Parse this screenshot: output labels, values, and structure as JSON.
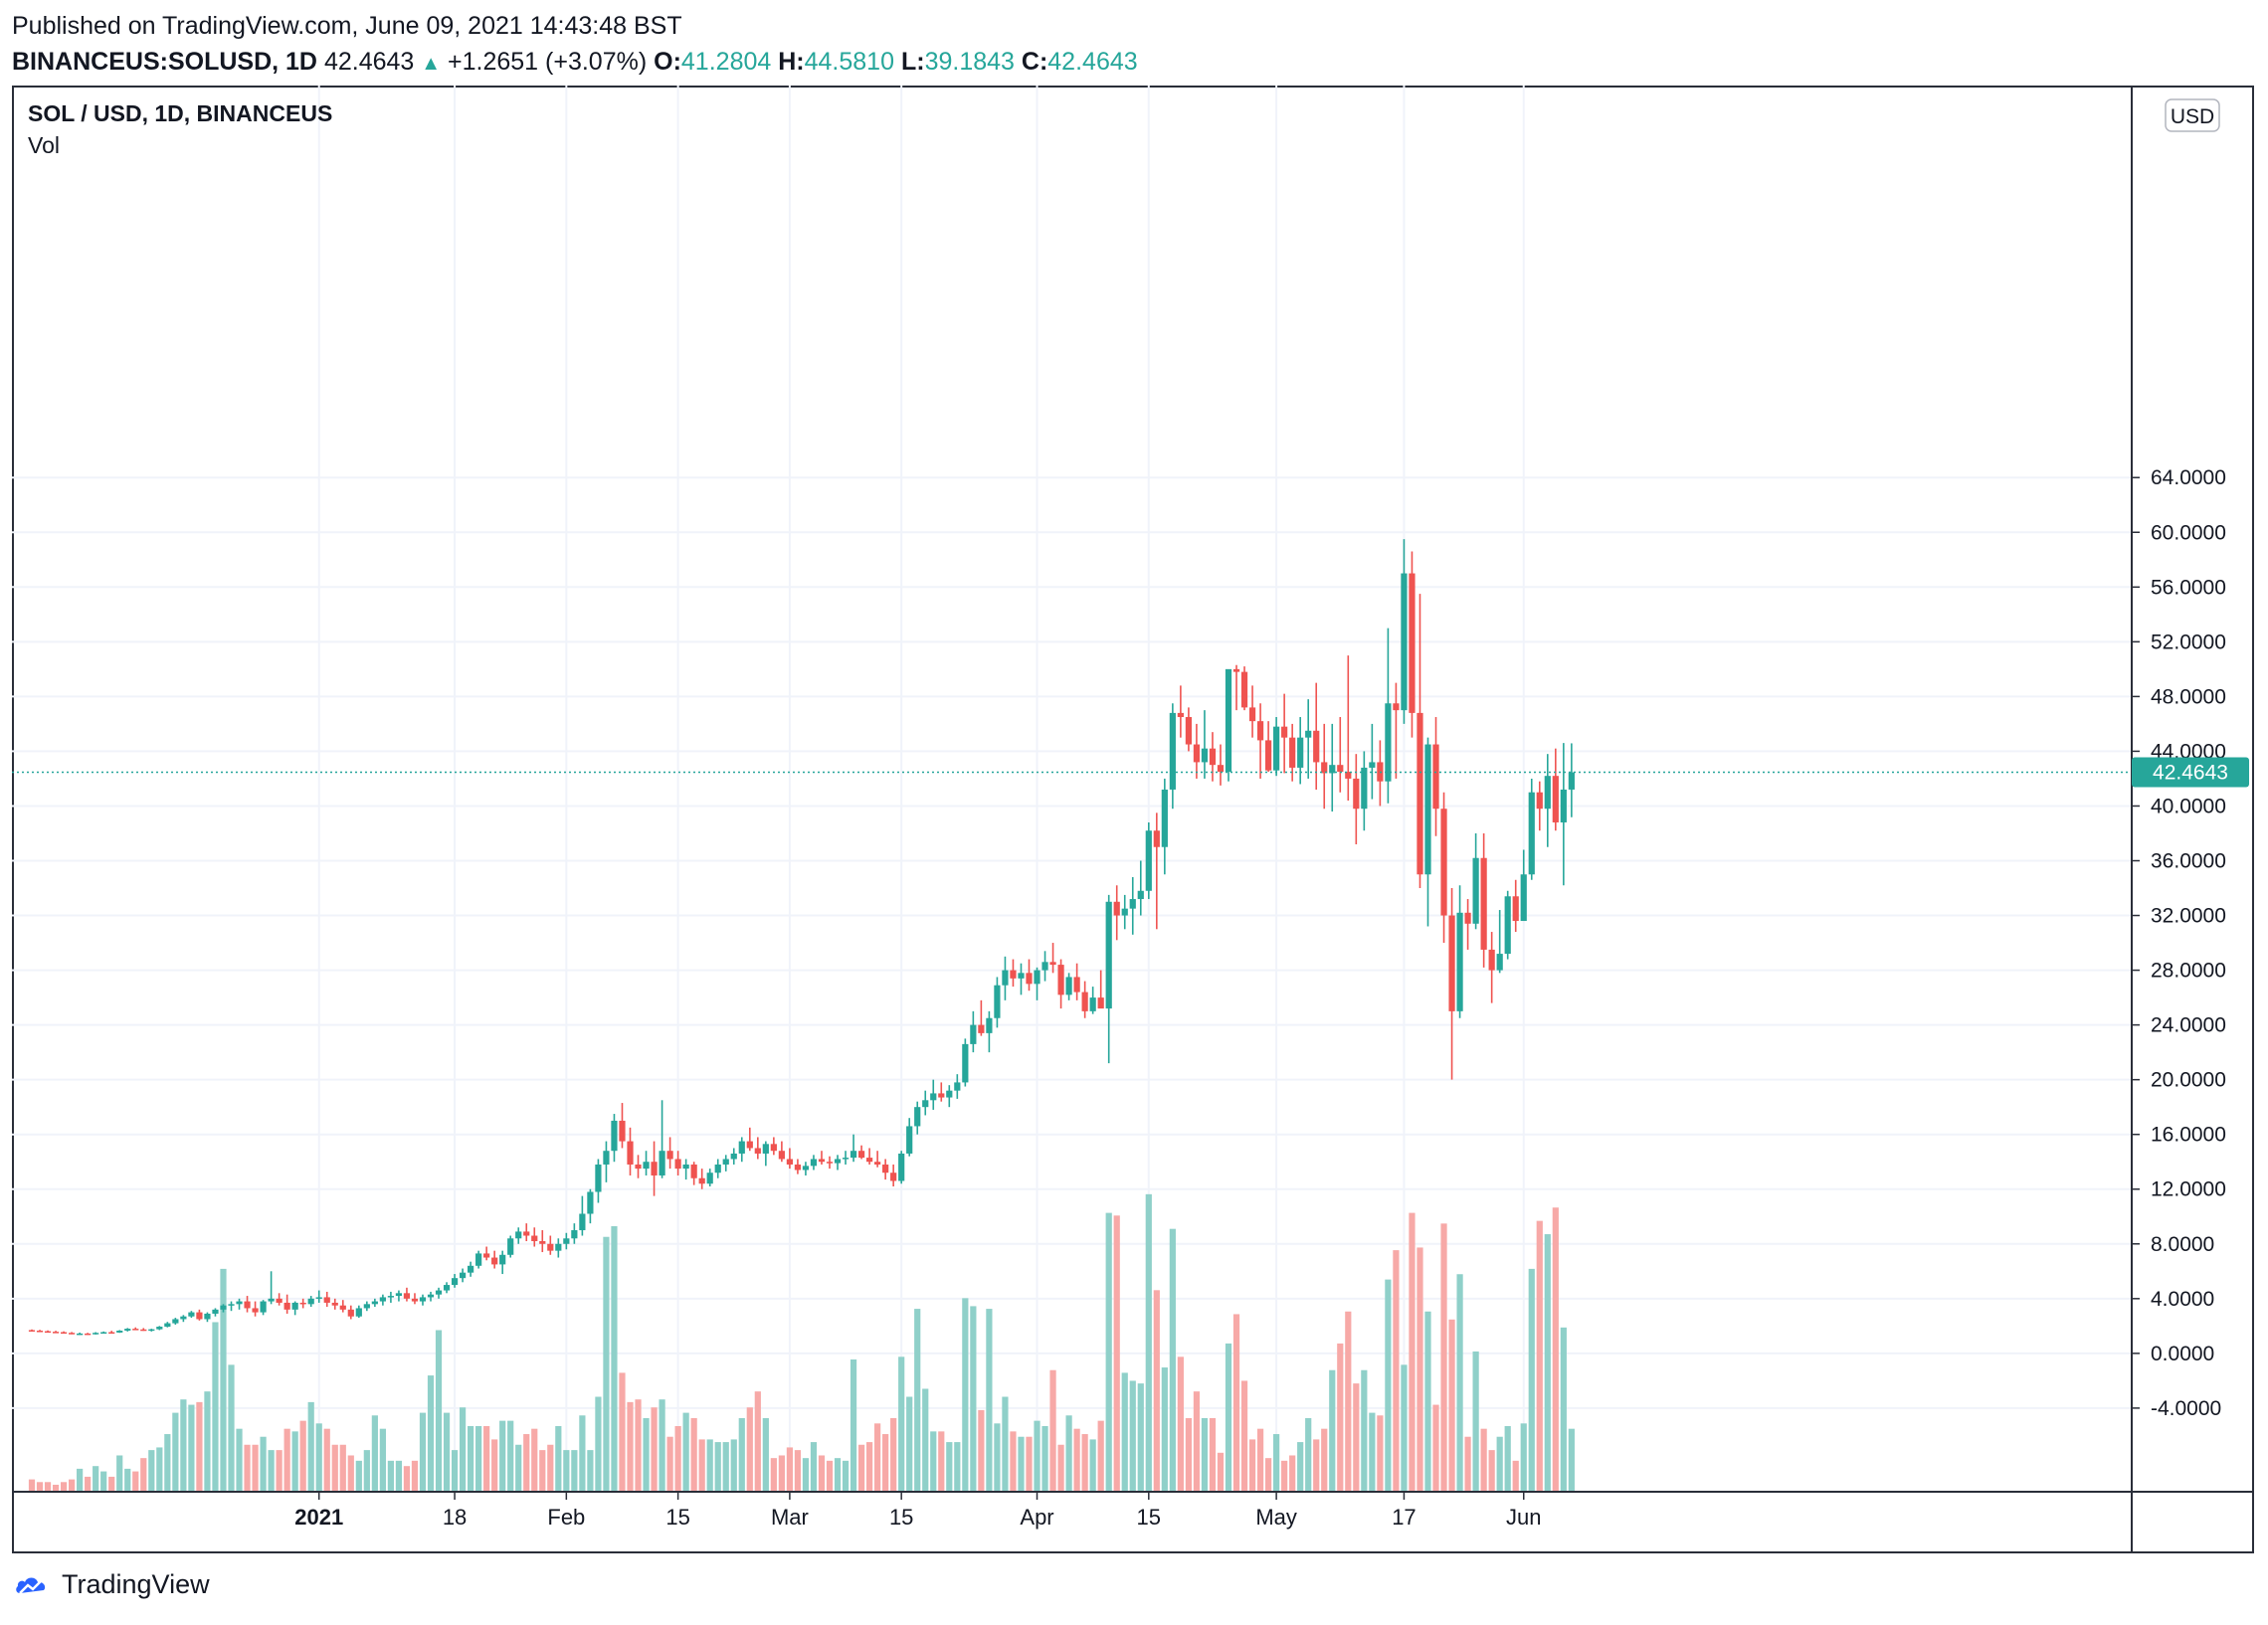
{
  "header": {
    "published": "Published on TradingView.com, June 09, 2021 14:43:48 BST",
    "symbol": "BINANCEUS:SOLUSD, 1D",
    "price": "42.4643",
    "change": "+1.2651 (+3.07%)",
    "o_label": "O:",
    "o_value": "41.2804",
    "h_label": "H:",
    "h_value": "44.5810",
    "l_label": "L:",
    "l_value": "39.1843",
    "c_label": "C:",
    "c_value": "42.4643"
  },
  "legend": {
    "title": "SOL / USD, 1D, BINANCEUS",
    "sub": "Vol"
  },
  "footer": {
    "brand": "TradingView"
  },
  "colors": {
    "up": "#26a69a",
    "down": "#ef5350",
    "up_vol": "#8fd0c9",
    "down_vol": "#f7a9a7",
    "grid": "#f0f3fa",
    "text": "#131722"
  },
  "chart_data": {
    "type": "candlestick",
    "title": "SOL / USD, 1D, BINANCEUS",
    "currency_badge": "USD",
    "last_price_label": "42.4643",
    "last_price": 42.4643,
    "ylim": [
      -6,
      66
    ],
    "y_ticks": [
      "64.0000",
      "60.0000",
      "56.0000",
      "52.0000",
      "48.0000",
      "44.0000",
      "40.0000",
      "36.0000",
      "32.0000",
      "28.0000",
      "24.0000",
      "20.0000",
      "16.0000",
      "12.0000",
      "8.0000",
      "4.0000",
      "0.0000",
      "-4.0000"
    ],
    "x_labels": [
      {
        "date": "2021-01-01",
        "label": "2021",
        "bold": true
      },
      {
        "date": "2021-01-18",
        "label": "18",
        "bold": false
      },
      {
        "date": "2021-02-01",
        "label": "Feb",
        "bold": false
      },
      {
        "date": "2021-02-15",
        "label": "15",
        "bold": false
      },
      {
        "date": "2021-03-01",
        "label": "Mar",
        "bold": false
      },
      {
        "date": "2021-03-15",
        "label": "15",
        "bold": false
      },
      {
        "date": "2021-04-01",
        "label": "Apr",
        "bold": false
      },
      {
        "date": "2021-04-15",
        "label": "15",
        "bold": false
      },
      {
        "date": "2021-05-01",
        "label": "May",
        "bold": false
      },
      {
        "date": "2021-05-17",
        "label": "17",
        "bold": false
      },
      {
        "date": "2021-06-01",
        "label": "Jun",
        "bold": false
      }
    ],
    "start_date": "2020-11-26",
    "columns": [
      "open",
      "high",
      "low",
      "close",
      "volume"
    ],
    "series": [
      [
        1.7,
        1.75,
        1.64,
        1.66,
        0.5
      ],
      [
        1.66,
        1.72,
        1.6,
        1.62,
        0.4
      ],
      [
        1.62,
        1.68,
        1.55,
        1.58,
        0.4
      ],
      [
        1.58,
        1.65,
        1.52,
        1.55,
        0.3
      ],
      [
        1.55,
        1.61,
        1.48,
        1.5,
        0.4
      ],
      [
        1.5,
        1.56,
        1.4,
        1.42,
        0.5
      ],
      [
        1.42,
        1.52,
        1.35,
        1.45,
        0.9
      ],
      [
        1.45,
        1.5,
        1.36,
        1.4,
        0.6
      ],
      [
        1.4,
        1.55,
        1.38,
        1.5,
        1.0
      ],
      [
        1.5,
        1.6,
        1.45,
        1.55,
        0.8
      ],
      [
        1.55,
        1.65,
        1.48,
        1.52,
        0.6
      ],
      [
        1.52,
        1.7,
        1.5,
        1.66,
        1.4
      ],
      [
        1.66,
        1.85,
        1.6,
        1.8,
        0.9
      ],
      [
        1.8,
        1.9,
        1.7,
        1.75,
        0.8
      ],
      [
        1.75,
        1.85,
        1.65,
        1.7,
        1.3
      ],
      [
        1.7,
        1.8,
        1.6,
        1.76,
        1.6
      ],
      [
        1.76,
        2.0,
        1.7,
        1.95,
        1.7
      ],
      [
        1.95,
        2.3,
        1.9,
        2.2,
        2.2
      ],
      [
        2.2,
        2.6,
        2.1,
        2.5,
        3.0
      ],
      [
        2.5,
        2.8,
        2.3,
        2.7,
        3.5
      ],
      [
        2.7,
        3.1,
        2.6,
        3.0,
        3.3
      ],
      [
        3.0,
        3.2,
        2.4,
        2.5,
        3.4
      ],
      [
        2.5,
        3.0,
        2.3,
        2.9,
        3.8
      ],
      [
        2.9,
        3.3,
        2.7,
        3.2,
        6.4
      ],
      [
        3.2,
        3.6,
        3.0,
        3.5,
        8.4
      ],
      [
        3.5,
        3.8,
        3.1,
        3.6,
        4.8
      ],
      [
        3.6,
        4.0,
        3.2,
        3.8,
        2.4
      ],
      [
        3.8,
        4.2,
        3.0,
        3.3,
        1.8
      ],
      [
        3.3,
        3.8,
        2.7,
        3.0,
        1.8
      ],
      [
        3.0,
        3.9,
        2.8,
        3.8,
        2.1
      ],
      [
        3.8,
        6.0,
        3.6,
        4.0,
        1.6
      ],
      [
        4.0,
        4.4,
        3.5,
        3.7,
        1.6
      ],
      [
        3.7,
        4.3,
        2.9,
        3.2,
        2.4
      ],
      [
        3.2,
        3.8,
        2.8,
        3.7,
        2.3
      ],
      [
        3.7,
        4.0,
        3.3,
        3.6,
        2.7
      ],
      [
        3.6,
        4.2,
        3.4,
        4.0,
        3.4
      ],
      [
        4.0,
        4.6,
        3.7,
        4.1,
        2.6
      ],
      [
        4.1,
        4.5,
        3.4,
        3.7,
        2.4
      ],
      [
        3.7,
        4.0,
        3.2,
        3.5,
        1.8
      ],
      [
        3.5,
        3.9,
        3.0,
        3.2,
        1.8
      ],
      [
        3.2,
        3.5,
        2.5,
        2.7,
        1.4
      ],
      [
        2.7,
        3.5,
        2.6,
        3.3,
        1.2
      ],
      [
        3.3,
        3.8,
        3.1,
        3.6,
        1.6
      ],
      [
        3.6,
        4.0,
        3.4,
        3.8,
        2.9
      ],
      [
        3.8,
        4.3,
        3.5,
        4.1,
        2.4
      ],
      [
        4.1,
        4.5,
        3.7,
        4.2,
        1.2
      ],
      [
        4.2,
        4.6,
        3.8,
        4.4,
        1.2
      ],
      [
        4.4,
        4.8,
        3.8,
        4.0,
        1.0
      ],
      [
        4.0,
        4.4,
        3.6,
        3.8,
        1.2
      ],
      [
        3.8,
        4.3,
        3.5,
        4.1,
        3.0
      ],
      [
        4.1,
        4.5,
        3.8,
        4.3,
        4.4
      ],
      [
        4.3,
        4.8,
        4.0,
        4.6,
        6.1
      ],
      [
        4.6,
        5.2,
        4.4,
        5.0,
        3.0
      ],
      [
        5.0,
        5.8,
        4.8,
        5.5,
        1.6
      ],
      [
        5.5,
        6.2,
        5.2,
        5.9,
        3.2
      ],
      [
        5.9,
        6.7,
        5.6,
        6.4,
        2.5
      ],
      [
        6.4,
        7.5,
        6.2,
        7.3,
        2.5
      ],
      [
        7.3,
        7.8,
        6.8,
        7.0,
        2.5
      ],
      [
        7.0,
        7.5,
        6.2,
        6.5,
        2.0
      ],
      [
        6.5,
        7.5,
        5.8,
        7.2,
        2.7
      ],
      [
        7.2,
        8.6,
        7.0,
        8.4,
        2.7
      ],
      [
        8.4,
        9.2,
        8.0,
        8.9,
        1.8
      ],
      [
        8.9,
        9.5,
        8.2,
        8.6,
        2.2
      ],
      [
        8.6,
        9.2,
        7.8,
        8.2,
        2.4
      ],
      [
        8.2,
        9.0,
        7.4,
        8.0,
        1.6
      ],
      [
        8.0,
        8.6,
        7.2,
        7.5,
        1.8
      ],
      [
        7.5,
        8.4,
        7.0,
        8.0,
        2.5
      ],
      [
        8.0,
        8.8,
        7.6,
        8.4,
        1.6
      ],
      [
        8.4,
        9.5,
        8.0,
        9.0,
        1.6
      ],
      [
        9.0,
        11.5,
        8.6,
        10.2,
        2.9
      ],
      [
        10.2,
        12.0,
        9.5,
        11.8,
        1.6
      ],
      [
        11.8,
        14.2,
        11.0,
        13.8,
        3.6
      ],
      [
        13.8,
        15.5,
        12.5,
        14.8,
        9.6
      ],
      [
        14.8,
        17.5,
        14.0,
        17.0,
        10.0
      ],
      [
        17.0,
        18.3,
        15.0,
        15.5,
        4.5
      ],
      [
        15.5,
        16.5,
        13.0,
        13.8,
        3.4
      ],
      [
        13.8,
        14.5,
        12.8,
        13.5,
        3.5
      ],
      [
        13.5,
        14.8,
        13.0,
        14.0,
        2.8
      ],
      [
        14.0,
        15.5,
        11.5,
        13.0,
        3.2
      ],
      [
        13.0,
        18.5,
        12.8,
        14.8,
        3.5
      ],
      [
        14.8,
        15.8,
        13.5,
        14.2,
        2.1
      ],
      [
        14.2,
        14.8,
        13.0,
        13.5,
        2.5
      ],
      [
        13.5,
        14.2,
        12.7,
        13.8,
        3.0
      ],
      [
        13.8,
        14.0,
        12.3,
        12.8,
        2.8
      ],
      [
        12.8,
        13.5,
        12.0,
        12.4,
        2.0
      ],
      [
        12.4,
        13.5,
        12.2,
        13.2,
        2.0
      ],
      [
        13.2,
        14.2,
        12.8,
        13.8,
        1.9
      ],
      [
        13.8,
        14.5,
        13.3,
        14.2,
        1.9
      ],
      [
        14.2,
        15.0,
        13.8,
        14.6,
        2.0
      ],
      [
        14.6,
        15.8,
        14.0,
        15.5,
        2.8
      ],
      [
        15.5,
        16.5,
        14.8,
        15.0,
        3.2
      ],
      [
        15.0,
        15.8,
        14.2,
        14.6,
        3.8
      ],
      [
        14.6,
        15.5,
        13.7,
        15.3,
        2.8
      ],
      [
        15.3,
        15.8,
        14.5,
        14.8,
        1.3
      ],
      [
        14.8,
        15.5,
        14.0,
        14.2,
        1.4
      ],
      [
        14.2,
        15.0,
        13.5,
        13.8,
        1.7
      ],
      [
        13.8,
        14.2,
        13.1,
        13.4,
        1.6
      ],
      [
        13.4,
        14.0,
        13.0,
        13.7,
        1.3
      ],
      [
        13.7,
        14.5,
        13.4,
        14.2,
        1.9
      ],
      [
        14.2,
        14.8,
        13.8,
        14.0,
        1.4
      ],
      [
        14.0,
        14.4,
        13.5,
        13.9,
        1.2
      ],
      [
        13.9,
        14.5,
        13.4,
        14.2,
        1.3
      ],
      [
        14.2,
        14.8,
        13.8,
        14.3,
        1.2
      ],
      [
        14.3,
        16.0,
        14.0,
        14.8,
        5.0
      ],
      [
        14.8,
        15.2,
        14.2,
        14.3,
        1.8
      ],
      [
        14.3,
        15.0,
        13.8,
        14.0,
        1.9
      ],
      [
        14.0,
        14.8,
        13.6,
        13.8,
        2.6
      ],
      [
        13.8,
        14.2,
        12.7,
        13.2,
        2.2
      ],
      [
        13.2,
        13.8,
        12.2,
        12.6,
        2.8
      ],
      [
        12.6,
        14.8,
        12.4,
        14.6,
        5.1
      ],
      [
        14.6,
        17.2,
        14.4,
        16.6,
        3.6
      ],
      [
        16.6,
        18.4,
        16.0,
        18.0,
        6.9
      ],
      [
        18.0,
        19.2,
        17.4,
        18.5,
        3.9
      ],
      [
        18.5,
        20.0,
        17.8,
        19.0,
        2.3
      ],
      [
        19.0,
        19.8,
        18.4,
        18.7,
        2.3
      ],
      [
        18.7,
        19.6,
        18.0,
        19.2,
        1.9
      ],
      [
        19.2,
        20.4,
        18.6,
        19.8,
        1.9
      ],
      [
        19.8,
        23.0,
        19.5,
        22.6,
        7.3
      ],
      [
        22.6,
        25.0,
        22.0,
        24.0,
        7.0
      ],
      [
        24.0,
        25.8,
        23.2,
        23.4,
        3.1
      ],
      [
        23.4,
        25.0,
        22.0,
        24.5,
        6.9
      ],
      [
        24.5,
        27.5,
        23.8,
        26.9,
        2.6
      ],
      [
        26.9,
        29.0,
        25.8,
        28.0,
        3.6
      ],
      [
        28.0,
        28.8,
        26.8,
        27.4,
        2.3
      ],
      [
        27.4,
        28.5,
        26.2,
        27.8,
        2.1
      ],
      [
        27.8,
        28.8,
        26.5,
        27.0,
        2.1
      ],
      [
        27.0,
        28.2,
        25.8,
        28.0,
        2.7
      ],
      [
        28.0,
        29.4,
        27.2,
        28.6,
        2.5
      ],
      [
        28.6,
        30.0,
        27.8,
        28.4,
        4.6
      ],
      [
        28.4,
        28.8,
        25.2,
        26.2,
        1.8
      ],
      [
        26.2,
        27.8,
        25.8,
        27.5,
        2.9
      ],
      [
        27.5,
        28.5,
        25.8,
        26.4,
        2.4
      ],
      [
        26.4,
        27.2,
        24.5,
        25.0,
        2.2
      ],
      [
        25.0,
        26.8,
        24.8,
        26.0,
        2.0
      ],
      [
        26.0,
        28.0,
        25.4,
        25.2,
        2.7
      ],
      [
        25.2,
        33.5,
        21.2,
        33.0,
        10.5
      ],
      [
        33.0,
        34.2,
        30.2,
        32.0,
        10.4
      ],
      [
        32.0,
        33.5,
        31.0,
        32.5,
        4.5
      ],
      [
        32.5,
        34.8,
        30.6,
        33.2,
        4.2
      ],
      [
        33.2,
        36.0,
        32.0,
        33.8,
        4.1
      ],
      [
        33.8,
        38.8,
        33.2,
        38.2,
        11.2
      ],
      [
        38.2,
        39.5,
        31.0,
        37.0,
        7.6
      ],
      [
        37.0,
        42.0,
        35.0,
        41.2,
        4.7
      ],
      [
        41.2,
        47.5,
        39.8,
        46.8,
        9.9
      ],
      [
        46.8,
        48.8,
        45.0,
        46.5,
        5.1
      ],
      [
        46.5,
        47.2,
        44.0,
        44.5,
        2.8
      ],
      [
        44.5,
        46.0,
        42.0,
        43.2,
        3.8
      ],
      [
        43.2,
        47.0,
        42.0,
        44.2,
        2.8
      ],
      [
        44.2,
        45.4,
        41.8,
        43.0,
        2.8
      ],
      [
        43.0,
        44.5,
        41.5,
        42.5,
        1.5
      ],
      [
        42.5,
        46.0,
        41.8,
        50.0,
        5.6
      ],
      [
        50.0,
        50.3,
        47.0,
        49.8,
        6.7
      ],
      [
        49.8,
        50.2,
        47.0,
        47.2,
        4.2
      ],
      [
        47.2,
        48.8,
        45.0,
        46.2,
        2.0
      ],
      [
        46.2,
        47.5,
        42.0,
        44.8,
        2.4
      ],
      [
        44.8,
        46.2,
        42.5,
        42.6,
        1.3
      ],
      [
        42.6,
        46.5,
        42.2,
        45.8,
        2.2
      ],
      [
        45.8,
        48.2,
        42.4,
        45.0,
        1.2
      ],
      [
        45.0,
        46.0,
        41.8,
        42.8,
        1.4
      ],
      [
        42.8,
        46.5,
        41.6,
        45.0,
        1.9
      ],
      [
        45.0,
        47.8,
        42.0,
        45.5,
        2.8
      ],
      [
        45.5,
        49.0,
        41.2,
        43.2,
        2.0
      ],
      [
        43.2,
        46.0,
        39.8,
        42.4,
        2.4
      ],
      [
        42.4,
        46.0,
        39.6,
        43.0,
        4.6
      ],
      [
        43.0,
        46.5,
        41.0,
        42.5,
        5.6
      ],
      [
        42.5,
        51.0,
        40.4,
        42.0,
        6.8
      ],
      [
        42.0,
        43.8,
        37.2,
        39.8,
        4.1
      ],
      [
        39.8,
        44.0,
        38.2,
        42.8,
        4.6
      ],
      [
        42.8,
        46.0,
        40.5,
        43.2,
        3.0
      ],
      [
        43.2,
        44.8,
        40.0,
        41.8,
        2.9
      ],
      [
        41.8,
        53.0,
        40.2,
        47.5,
        8.0
      ],
      [
        47.5,
        49.0,
        42.0,
        47.0,
        9.1
      ],
      [
        47.0,
        59.5,
        46.0,
        57.0,
        4.8
      ],
      [
        57.0,
        58.6,
        45.0,
        46.8,
        10.5
      ],
      [
        46.8,
        55.5,
        34.0,
        35.0,
        9.2
      ],
      [
        35.0,
        45.0,
        31.2,
        44.5,
        6.8
      ],
      [
        44.5,
        46.5,
        37.8,
        39.8,
        3.3
      ],
      [
        39.8,
        41.0,
        30.0,
        32.0,
        10.1
      ],
      [
        32.0,
        34.0,
        20.0,
        25.0,
        6.5
      ],
      [
        25.0,
        34.2,
        24.5,
        32.2,
        8.2
      ],
      [
        32.2,
        33.2,
        29.5,
        31.4,
        2.1
      ],
      [
        31.4,
        38.0,
        31.0,
        36.2,
        5.3
      ],
      [
        36.2,
        38.0,
        28.2,
        29.5,
        2.4
      ],
      [
        29.5,
        30.8,
        25.6,
        28.0,
        1.6
      ],
      [
        28.0,
        32.4,
        27.8,
        29.2,
        2.1
      ],
      [
        29.2,
        33.8,
        28.8,
        33.4,
        2.5
      ],
      [
        33.4,
        34.6,
        30.8,
        31.6,
        1.2
      ],
      [
        31.6,
        36.8,
        31.6,
        35.0,
        2.6
      ],
      [
        35.0,
        42.0,
        34.6,
        41.0,
        8.4
      ],
      [
        41.0,
        41.8,
        38.2,
        39.8,
        10.2
      ],
      [
        39.8,
        43.8,
        37.0,
        42.2,
        9.7
      ],
      [
        42.2,
        44.2,
        38.2,
        38.8,
        10.7
      ],
      [
        38.8,
        44.6,
        34.2,
        41.2,
        6.2
      ],
      [
        41.2,
        44.58,
        39.18,
        42.46,
        2.4
      ]
    ]
  }
}
